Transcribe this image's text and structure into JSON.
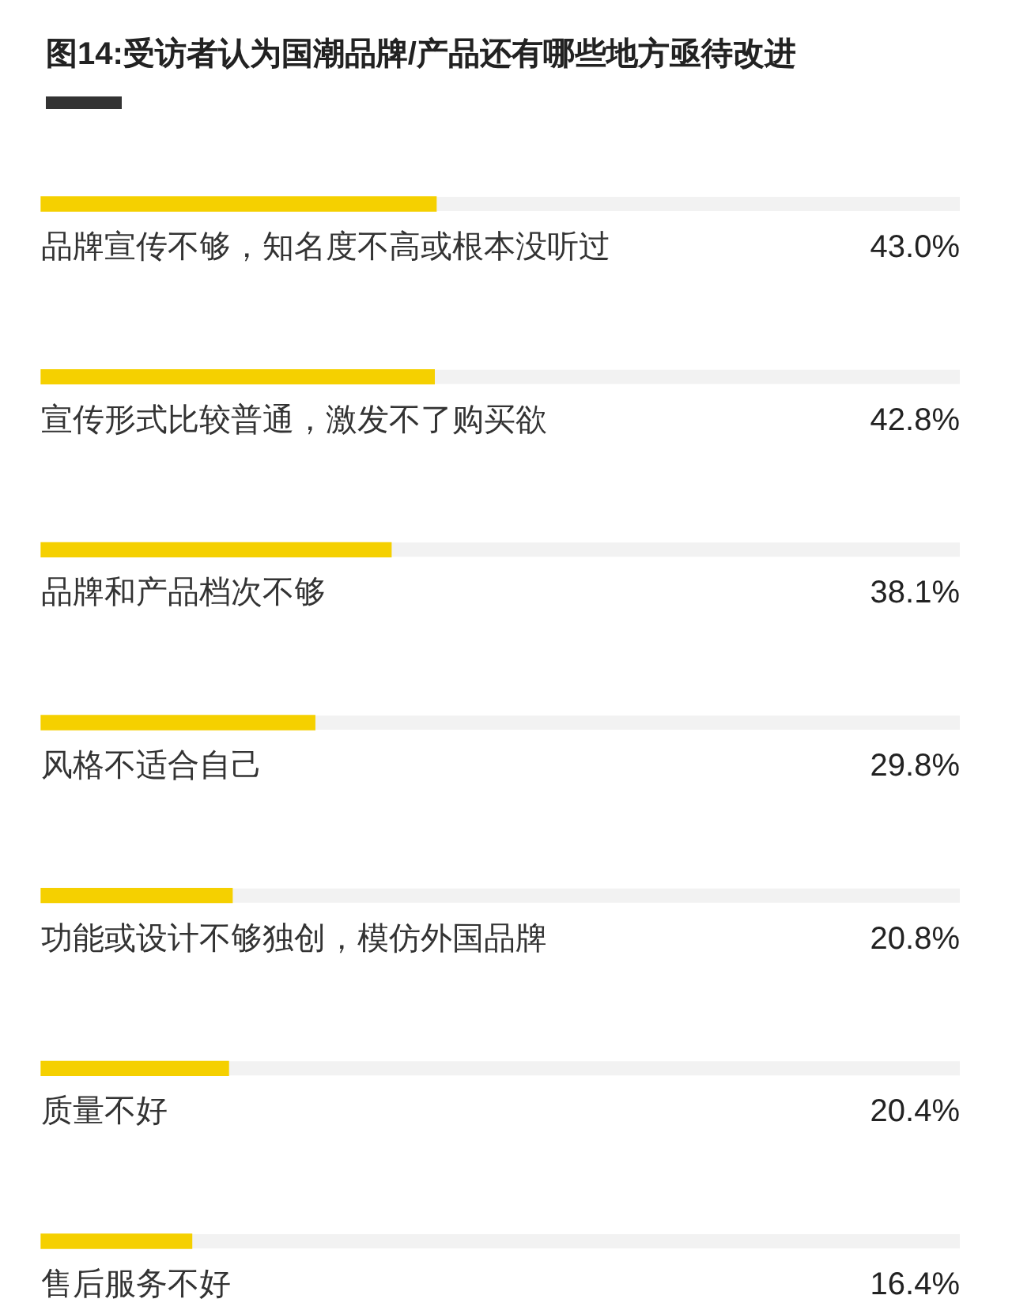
{
  "chart_data": {
    "type": "bar",
    "orientation": "horizontal",
    "title": "图14:受访者认为国潮品牌/产品还有哪些地方亟待改进",
    "categories": [
      "品牌宣传不够，知名度不高或根本没听过",
      "宣传形式比较普通，激发不了购买欲",
      "品牌和产品档次不够",
      "风格不适合自己",
      "功能或设计不够独创，模仿外国品牌",
      "质量不好",
      "售后服务不好"
    ],
    "values": [
      43.0,
      42.8,
      38.1,
      29.8,
      20.8,
      20.4,
      16.4
    ],
    "value_labels": [
      "43.0%",
      "42.8%",
      "38.1%",
      "29.8%",
      "20.8%",
      "20.4%",
      "16.4%"
    ],
    "color": "#f5d000",
    "xlim": [
      0,
      100
    ],
    "tick_labels": "y"
  }
}
